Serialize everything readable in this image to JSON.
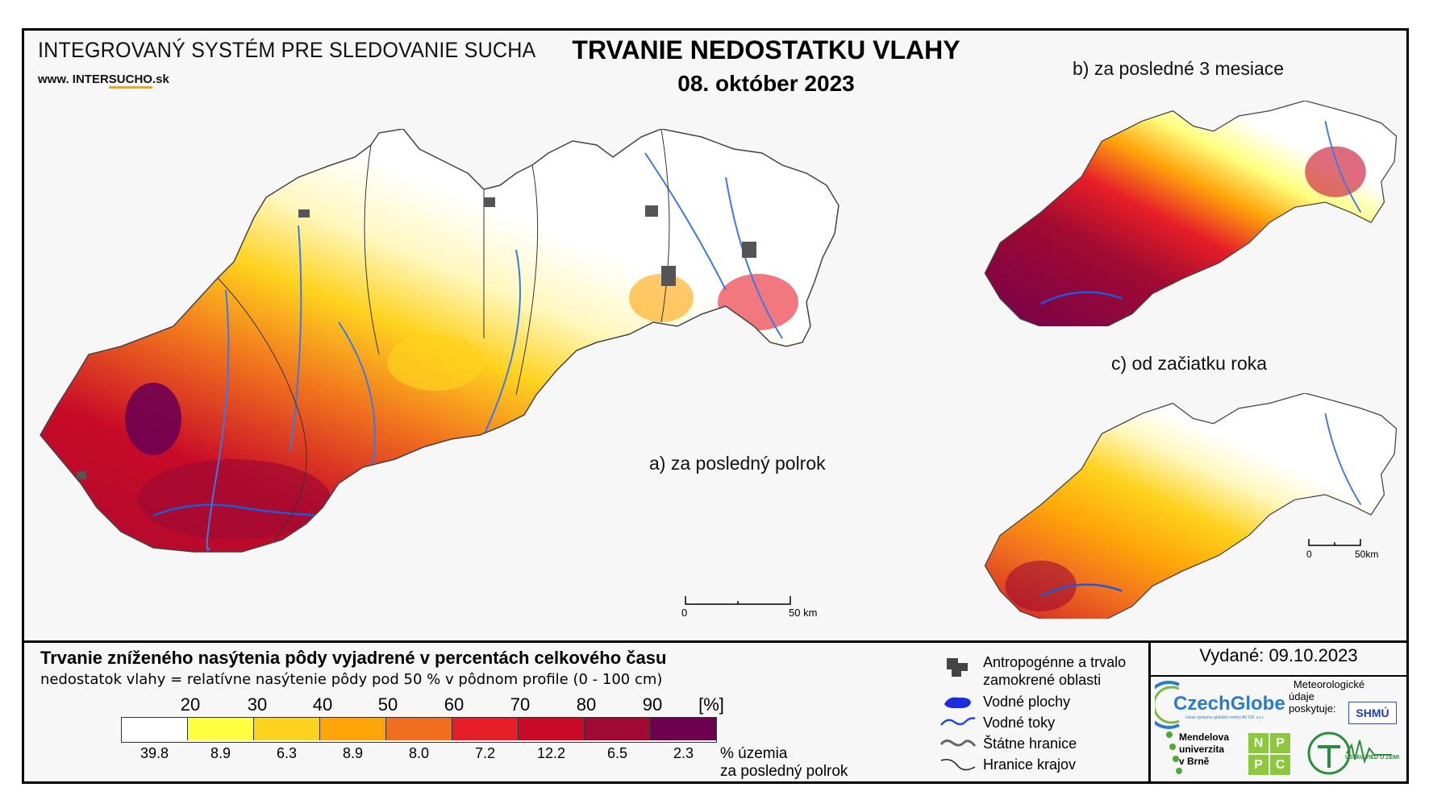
{
  "header": {
    "system_title": "INTEGROVANÝ SYSTÉM PRE SLEDOVANIE SUCHA",
    "web_prefix": "www. INTER",
    "web_underlined": "SUCHO",
    "web_suffix": ".sk",
    "main_title": "TRVANIE NEDOSTATKU VLAHY",
    "date": "08. október 2023"
  },
  "maps": {
    "main_label": "a) za posledný polrok",
    "b_label": "b) za posledné 3 mesiace",
    "c_label": "c) od začiatku roka",
    "scale_main_start": "0",
    "scale_main_end": "50 km",
    "scale_small_start": "0",
    "scale_small_end": "50km"
  },
  "legend": {
    "title": "Trvanie zníženého nasýtenia pôdy vyjadrené v percentách celkového času",
    "subtitle": "nedostatok vlahy = relatívne nasýtenie pôdy pod 50 % v pôdnom profile (0 - 100 cm)",
    "thresholds": [
      "20",
      "30",
      "40",
      "50",
      "60",
      "70",
      "80",
      "90"
    ],
    "unit": "[%]",
    "colors": [
      "#ffffff",
      "#ffff40",
      "#ffd21e",
      "#ffa50a",
      "#f06e1e",
      "#e61e28",
      "#c80a28",
      "#a00a32",
      "#6e0050"
    ],
    "area_shares": [
      "39.8",
      "8.9",
      "6.3",
      "8.9",
      "8.0",
      "7.2",
      "12.2",
      "6.5",
      "2.3"
    ],
    "area_caption_1": "% územia",
    "area_caption_2": "za posledný polrok"
  },
  "key": {
    "anthropogenic_1": "Antropogénne a trvalo",
    "anthropogenic_2": "zamokrené oblasti",
    "water_areas": "Vodné plochy",
    "rivers": "Vodné toky",
    "state_border": "Štátne hranice",
    "region_border": "Hranice krajov"
  },
  "issued": {
    "label": "Vydané: 09.10.2023",
    "czechglobe": "CzechGlobe",
    "czechglobe_sub": "Ústav výzkumu globální změny AV ČR, v.v.i.",
    "met_1": "Meteorologické",
    "met_2": "údaje",
    "met_3": "poskytuje:",
    "shmu": "SHMÚ",
    "mendel_1": "Mendelova",
    "mendel_2": "univerzita",
    "mendel_3": "v Brně",
    "nppc": [
      "N",
      "P",
      "P",
      "C"
    ],
    "uvz": "ÚSTAV VIED O ZEMI"
  }
}
